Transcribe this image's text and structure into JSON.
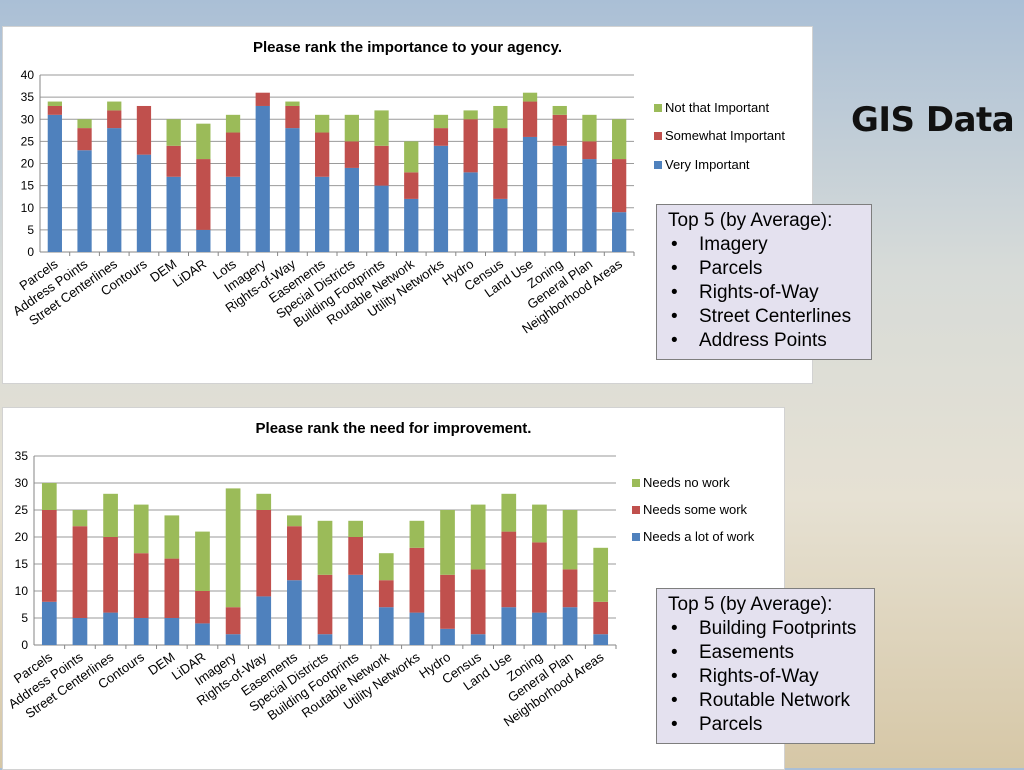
{
  "slide": {
    "title": "GIS Data"
  },
  "chart_data": [
    {
      "type": "stacked-bar",
      "title": "Please rank the importance to your agency.",
      "ylim": [
        0,
        40
      ],
      "yticks": [
        0,
        5,
        10,
        15,
        20,
        25,
        30,
        35,
        40
      ],
      "categories": [
        "Parcels",
        "Address Points",
        "Street Centerlines",
        "Contours",
        "DEM",
        "LiDAR",
        "Lots",
        "Imagery",
        "Rights-of-Way",
        "Easements",
        "Special Districts",
        "Building Footprints",
        "Routable Network",
        "Utility Networks",
        "Hydro",
        "Census",
        "Land Use",
        "Zoning",
        "General Plan",
        "Neighborhood Areas"
      ],
      "series": [
        {
          "name": "Very Important",
          "color": "#4f81bd",
          "values": [
            31,
            23,
            28,
            22,
            17,
            5,
            17,
            33,
            28,
            17,
            19,
            15,
            12,
            24,
            18,
            12,
            26,
            24,
            21,
            9
          ]
        },
        {
          "name": "Somewhat Important",
          "color": "#c0504d",
          "values": [
            2,
            5,
            4,
            11,
            7,
            16,
            10,
            3,
            5,
            10,
            6,
            9,
            6,
            4,
            12,
            16,
            8,
            7,
            4,
            12
          ]
        },
        {
          "name": "Not that Important",
          "color": "#9bbb59",
          "values": [
            1,
            2,
            2,
            0,
            6,
            8,
            4,
            0,
            1,
            4,
            6,
            8,
            7,
            3,
            2,
            5,
            2,
            2,
            6,
            9
          ]
        }
      ],
      "legend_order": [
        "Not that Important",
        "Somewhat Important",
        "Very Important"
      ],
      "legend": "right"
    },
    {
      "type": "stacked-bar",
      "title": "Please rank the need for improvement.",
      "ylim": [
        0,
        35
      ],
      "yticks": [
        0,
        5,
        10,
        15,
        20,
        25,
        30,
        35
      ],
      "categories": [
        "Parcels",
        "Address Points",
        "Street Centerlines",
        "Contours",
        "DEM",
        "LiDAR",
        "Imagery",
        "Rights-of-Way",
        "Easements",
        "Special Districts",
        "Building Footprints",
        "Routable Network",
        "Utility Networks",
        "Hydro",
        "Census",
        "Land Use",
        "Zoning",
        "General Plan",
        "Neighborhood Areas"
      ],
      "series": [
        {
          "name": "Needs a lot of work",
          "color": "#4f81bd",
          "values": [
            8,
            5,
            6,
            5,
            5,
            4,
            2,
            9,
            12,
            2,
            13,
            7,
            6,
            3,
            2,
            7,
            6,
            7,
            2
          ]
        },
        {
          "name": "Needs some work",
          "color": "#c0504d",
          "values": [
            17,
            17,
            14,
            12,
            11,
            6,
            5,
            16,
            10,
            11,
            7,
            5,
            12,
            10,
            12,
            14,
            13,
            7,
            6
          ]
        },
        {
          "name": "Needs no work",
          "color": "#9bbb59",
          "values": [
            5,
            3,
            8,
            9,
            8,
            11,
            22,
            3,
            2,
            10,
            3,
            5,
            5,
            12,
            12,
            7,
            7,
            11,
            10
          ]
        }
      ],
      "legend_order": [
        "Needs no work",
        "Needs some work",
        "Needs a lot of work"
      ],
      "legend": "right"
    }
  ],
  "top5_importance": {
    "heading": "Top 5 (by Average):",
    "items": [
      "Imagery",
      "Parcels",
      "Rights-of-Way",
      "Street Centerlines",
      "Address Points"
    ]
  },
  "top5_improvement": {
    "heading": "Top 5 (by Average):",
    "items": [
      "Building Footprints",
      "Easements",
      "Rights-of-Way",
      "Routable Network",
      "Parcels"
    ]
  }
}
